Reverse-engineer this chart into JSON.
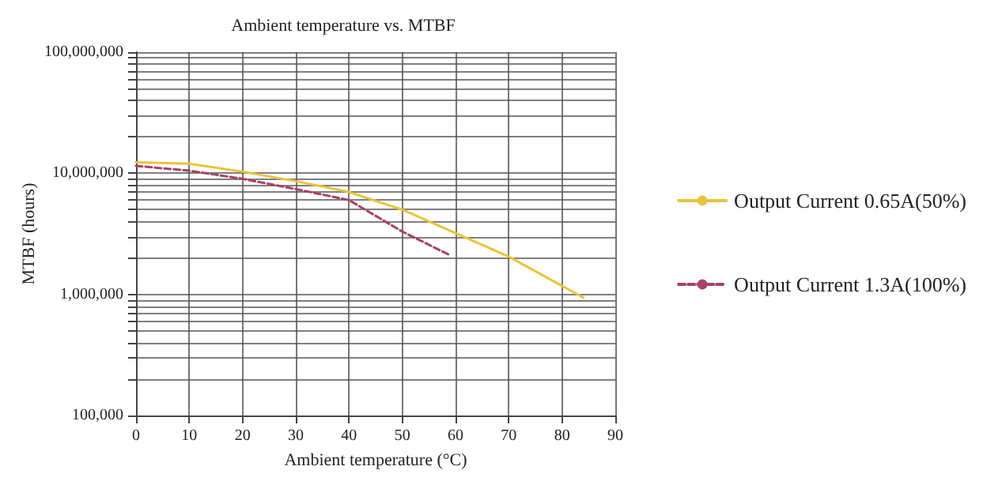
{
  "chart_data": {
    "type": "line",
    "title": "Ambient temperature vs. MTBF",
    "xlabel": "Ambient temperature (°C)",
    "ylabel": "MTBF (hours)",
    "log": "y",
    "grid": true,
    "legend": "right",
    "marker": "none",
    "xlim": [
      0,
      90
    ],
    "xticks": [
      0,
      10,
      20,
      30,
      40,
      50,
      60,
      70,
      80,
      90
    ],
    "ylim": [
      100000,
      100000000
    ],
    "yticks": [
      {
        "value": 100000,
        "label": "100,000"
      },
      {
        "value": 200000,
        "label": null
      },
      {
        "value": 300000,
        "label": null
      },
      {
        "value": 400000,
        "label": null
      },
      {
        "value": 500000,
        "label": null
      },
      {
        "value": 600000,
        "label": null
      },
      {
        "value": 700000,
        "label": null
      },
      {
        "value": 800000,
        "label": null
      },
      {
        "value": 900000,
        "label": null
      },
      {
        "value": 1000000,
        "label": "1,000,000"
      },
      {
        "value": 2000000,
        "label": null
      },
      {
        "value": 3000000,
        "label": null
      },
      {
        "value": 4000000,
        "label": null
      },
      {
        "value": 5000000,
        "label": null
      },
      {
        "value": 6000000,
        "label": null
      },
      {
        "value": 7000000,
        "label": null
      },
      {
        "value": 8000000,
        "label": null
      },
      {
        "value": 9000000,
        "label": null
      },
      {
        "value": 10000000,
        "label": "10,000,000"
      },
      {
        "value": 20000000,
        "label": null
      },
      {
        "value": 30000000,
        "label": null
      },
      {
        "value": 40000000,
        "label": null
      },
      {
        "value": 50000000,
        "label": null
      },
      {
        "value": 60000000,
        "label": null
      },
      {
        "value": 70000000,
        "label": null
      },
      {
        "value": 80000000,
        "label": null
      },
      {
        "value": 90000000,
        "label": null
      },
      {
        "value": 100000000,
        "label": "100,000,000"
      }
    ],
    "series": [
      {
        "name": "Output Current 0.65A(50%)",
        "color": "#e8c43c",
        "line_style": "solid",
        "x": [
          0,
          10,
          20,
          30,
          40,
          50,
          60,
          70,
          84
        ],
        "values": [
          12300000,
          12000000,
          10300000,
          8600000,
          7000000,
          5000000,
          3200000,
          2050000,
          940000
        ]
      },
      {
        "name": "Output Current 1.3A(100%)",
        "color": "#a8406a",
        "line_style": "dashed",
        "x": [
          0,
          10,
          20,
          30,
          40,
          50,
          59
        ],
        "values": [
          11500000,
          10500000,
          9000000,
          7400000,
          6000000,
          3300000,
          2100000
        ]
      }
    ]
  }
}
